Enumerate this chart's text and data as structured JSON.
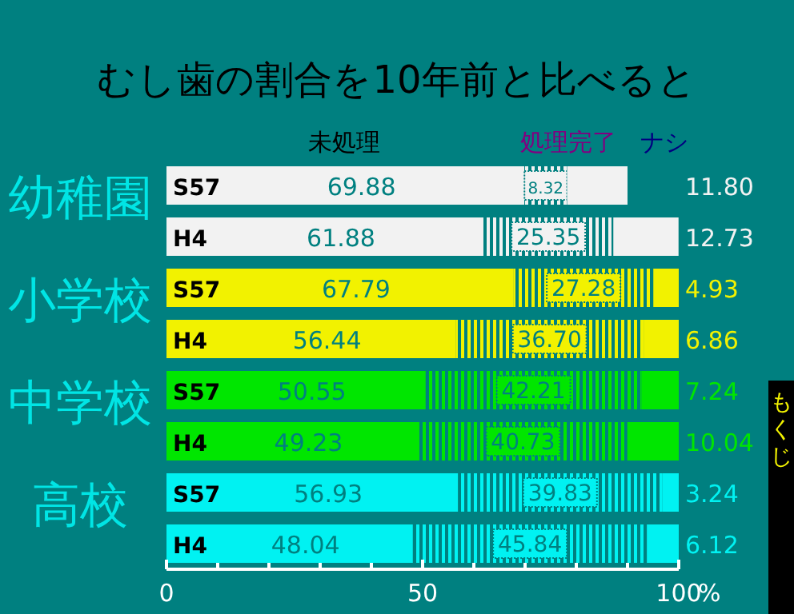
{
  "chart_data": {
    "type": "bar",
    "orientation": "horizontal",
    "stacked": true,
    "title": "むし歯の割合を10年前と比べると",
    "categories": [
      "S57",
      "H4",
      "S57",
      "H4",
      "S57",
      "H4",
      "S57",
      "H4"
    ],
    "series": [
      {
        "name": "未処理",
        "colors": [
          "#f2f2f2",
          "#f2f2f2",
          "#f2f200",
          "#f2f200",
          "#00e600",
          "#00e600",
          "#00f2f2",
          "#00f2f2"
        ],
        "values": [
          69.88,
          61.88,
          67.79,
          56.44,
          50.55,
          49.23,
          56.93,
          48.04
        ],
        "value_labels": [
          "69.88",
          "61.88",
          "67.79",
          "56.44",
          "50.55",
          "49.23",
          "56.93",
          "48.04"
        ]
      },
      {
        "name": "処理完了",
        "colors": [
          "#f2f2f2",
          "#f2f2f2",
          "#f2f200",
          "#f2f200",
          "#00e600",
          "#00e600",
          "#00f2f2",
          "#00f2f2"
        ],
        "values": [
          8.32,
          25.35,
          27.28,
          36.7,
          42.21,
          40.73,
          39.83,
          45.84
        ],
        "value_labels": [
          "8.32",
          "25.35",
          "27.28",
          "36.70",
          "42.21",
          "40.73",
          "39.83",
          "45.84"
        ]
      },
      {
        "name": "ナシ",
        "colors": [
          "#f2f2f2",
          "#f2f2f2",
          "#f2f200",
          "#f2f200",
          "#00e600",
          "#00e600",
          "#00f2f2",
          "#00f2f2"
        ],
        "values": [
          11.8,
          12.73,
          4.93,
          6.86,
          7.24,
          10.04,
          3.24,
          6.12
        ],
        "value_labels": [
          "11.80",
          "12.73",
          "4.93",
          "6.86",
          "7.24",
          "10.04",
          "3.24",
          "6.12"
        ]
      }
    ],
    "legend": "top",
    "xlabel": "%",
    "xlim": [
      0,
      100
    ],
    "xticks": [
      0,
      {
        "value": 10,
        "label": null
      },
      {
        "value": 20,
        "label": null
      },
      {
        "value": 30,
        "label": null
      },
      {
        "value": 40,
        "label": null
      },
      50,
      {
        "value": 60,
        "label": null
      },
      {
        "value": 70,
        "label": null
      },
      {
        "value": 80,
        "label": null
      },
      {
        "value": 90,
        "label": null
      },
      100
    ],
    "annotations": [
      "幼稚園",
      "小学校",
      "中学校",
      "高校",
      "もくじ"
    ]
  }
}
